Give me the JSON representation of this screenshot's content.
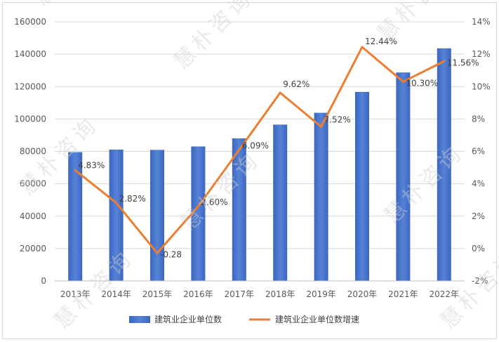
{
  "chart_data": {
    "type": "bar",
    "categories": [
      "2013年",
      "2014年",
      "2015年",
      "2016年",
      "2017年",
      "2018年",
      "2019年",
      "2020年",
      "2021年",
      "2022年"
    ],
    "series": [
      {
        "name": "建筑业企业单位数",
        "type": "bar",
        "axis": "left",
        "color": "#4472c4",
        "values": [
          79500,
          81100,
          80900,
          83000,
          88000,
          96500,
          103800,
          116700,
          128700,
          143600
        ]
      },
      {
        "name": "建筑业企业单位数增速",
        "type": "line",
        "axis": "right",
        "color": "#ed7d31",
        "values": [
          4.83,
          2.82,
          -0.28,
          2.6,
          6.09,
          9.62,
          7.52,
          12.44,
          10.3,
          11.56
        ],
        "labels": [
          "4.83%",
          "2.82%",
          "-0.28",
          "2.60%",
          "6.09%",
          "9.62%",
          "7.52%",
          "12.44%",
          "10.30%",
          "11.56%"
        ]
      }
    ],
    "y_left": {
      "range": [
        0,
        160000
      ],
      "ticks": [
        "0",
        "20000",
        "40000",
        "60000",
        "80000",
        "100000",
        "120000",
        "140000",
        "160000"
      ]
    },
    "y_right": {
      "range": [
        -2,
        14
      ],
      "ticks": [
        "-2%",
        "0%",
        "2%",
        "4%",
        "6%",
        "8%",
        "10%",
        "12%",
        "14%"
      ]
    },
    "grid": true,
    "legend": "bottom",
    "watermark": "慧朴咨询"
  }
}
